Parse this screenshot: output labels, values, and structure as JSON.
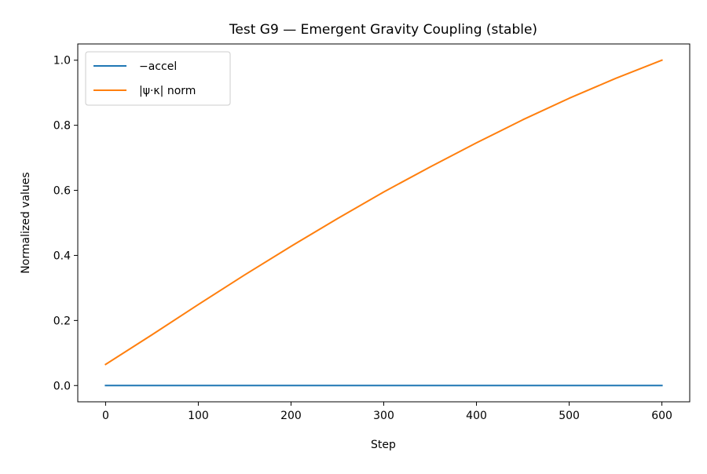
{
  "chart_data": {
    "type": "line",
    "title": "Test G9 — Emergent Gravity Coupling (stable)",
    "xlabel": "Step",
    "ylabel": "Normalized values",
    "xlim": [
      -30,
      630
    ],
    "ylim": [
      -0.05,
      1.05
    ],
    "xticks": [
      0,
      100,
      200,
      300,
      400,
      500,
      600
    ],
    "yticks": [
      0.0,
      0.2,
      0.4,
      0.6,
      0.8,
      1.0
    ],
    "xtick_labels": [
      "0",
      "100",
      "200",
      "300",
      "400",
      "500",
      "600"
    ],
    "ytick_labels": [
      "0.0",
      "0.2",
      "0.4",
      "0.6",
      "0.8",
      "1.0"
    ],
    "grid": false,
    "legend_position": "top-left",
    "series": [
      {
        "name": "−accel",
        "color": "#1f77b4",
        "x": [
          0,
          100,
          200,
          300,
          400,
          500,
          600
        ],
        "y": [
          0.0,
          0.0,
          0.0,
          0.0,
          0.0,
          0.0,
          0.0
        ]
      },
      {
        "name": "|ψ·κ| norm",
        "color": "#ff7f0e",
        "x": [
          0,
          50,
          100,
          150,
          200,
          250,
          300,
          350,
          400,
          450,
          500,
          550,
          600
        ],
        "y": [
          0.065,
          0.156,
          0.249,
          0.34,
          0.428,
          0.513,
          0.595,
          0.672,
          0.746,
          0.817,
          0.883,
          0.944,
          1.0
        ]
      }
    ]
  }
}
